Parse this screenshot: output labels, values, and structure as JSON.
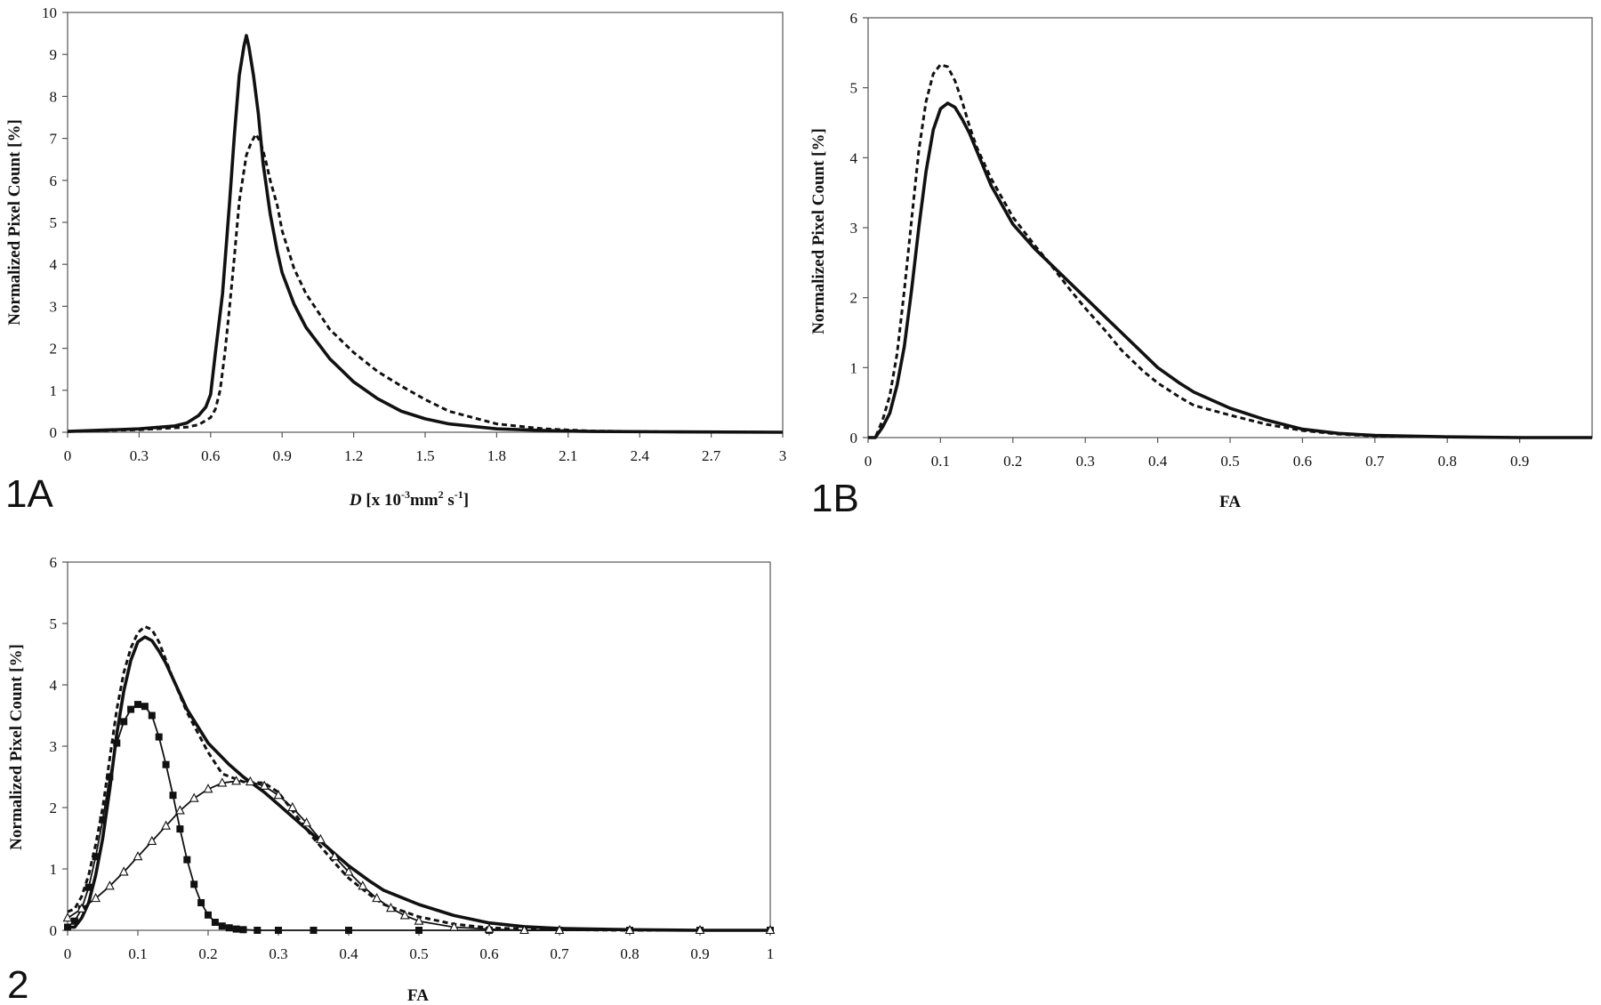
{
  "chart_data": [
    {
      "type": "line",
      "panel_label": "1A",
      "xlabel_parts": [
        "D",
        " [x 10",
        "-3",
        "mm",
        "2",
        " s",
        "-1",
        "]"
      ],
      "ylabel": "Normalized Pixel Count [%]",
      "xlim": [
        0,
        3
      ],
      "ylim": [
        0,
        10
      ],
      "xticks": [
        "0",
        "0.3",
        "0.6",
        "0.9",
        "1.2",
        "1.5",
        "1.8",
        "2.1",
        "2.4",
        "2.7",
        "3"
      ],
      "yticks": [
        "0",
        "1",
        "2",
        "3",
        "4",
        "5",
        "6",
        "7",
        "8",
        "9",
        "10"
      ],
      "series": [
        {
          "style": "solid",
          "color": "#111111",
          "x": [
            0,
            0.3,
            0.45,
            0.5,
            0.55,
            0.58,
            0.6,
            0.62,
            0.65,
            0.68,
            0.7,
            0.72,
            0.74,
            0.75,
            0.76,
            0.78,
            0.8,
            0.82,
            0.85,
            0.88,
            0.9,
            0.95,
            1.0,
            1.1,
            1.2,
            1.3,
            1.4,
            1.5,
            1.6,
            1.8,
            2.0,
            2.2,
            2.5,
            3.0
          ],
          "y": [
            0.02,
            0.08,
            0.15,
            0.22,
            0.4,
            0.6,
            0.9,
            1.9,
            3.3,
            5.5,
            7.1,
            8.5,
            9.2,
            9.45,
            9.2,
            8.5,
            7.6,
            6.4,
            5.2,
            4.3,
            3.8,
            3.05,
            2.5,
            1.75,
            1.2,
            0.8,
            0.5,
            0.32,
            0.2,
            0.08,
            0.04,
            0.02,
            0.01,
            0.0
          ]
        },
        {
          "style": "dashed",
          "color": "#111111",
          "x": [
            0,
            0.3,
            0.5,
            0.55,
            0.6,
            0.62,
            0.64,
            0.66,
            0.68,
            0.7,
            0.72,
            0.75,
            0.77,
            0.79,
            0.81,
            0.83,
            0.85,
            0.88,
            0.9,
            0.95,
            1.0,
            1.1,
            1.2,
            1.3,
            1.4,
            1.5,
            1.6,
            1.8,
            2.0,
            2.2,
            2.5,
            3.0
          ],
          "y": [
            0.02,
            0.06,
            0.12,
            0.18,
            0.35,
            0.55,
            1.0,
            1.9,
            3.0,
            4.2,
            5.5,
            6.6,
            6.9,
            7.1,
            6.9,
            6.5,
            6.0,
            5.4,
            4.8,
            3.9,
            3.3,
            2.45,
            1.9,
            1.45,
            1.1,
            0.78,
            0.5,
            0.2,
            0.08,
            0.03,
            0.01,
            0.0
          ]
        }
      ]
    },
    {
      "type": "line",
      "panel_label": "1B",
      "xlabel_parts": [
        "FA"
      ],
      "ylabel": "Normalized Pixel Count [%]",
      "xlim": [
        0,
        1
      ],
      "ylim": [
        0,
        6
      ],
      "xticks": [
        "0",
        "0.1",
        "0.2",
        "0.3",
        "0.4",
        "0.5",
        "0.6",
        "0.7",
        "0.8",
        "0.9"
      ],
      "yticks": [
        "0",
        "1",
        "2",
        "3",
        "4",
        "5",
        "6"
      ],
      "series": [
        {
          "style": "solid",
          "color": "#111111",
          "x": [
            0,
            0.01,
            0.02,
            0.03,
            0.04,
            0.05,
            0.06,
            0.07,
            0.08,
            0.09,
            0.1,
            0.11,
            0.12,
            0.13,
            0.14,
            0.15,
            0.17,
            0.2,
            0.23,
            0.25,
            0.28,
            0.3,
            0.33,
            0.35,
            0.38,
            0.4,
            0.43,
            0.45,
            0.5,
            0.55,
            0.6,
            0.65,
            0.7,
            0.8,
            0.9,
            1.0
          ],
          "y": [
            0,
            0,
            0.15,
            0.35,
            0.75,
            1.3,
            2.1,
            3.0,
            3.8,
            4.4,
            4.7,
            4.78,
            4.72,
            4.55,
            4.35,
            4.1,
            3.6,
            3.05,
            2.7,
            2.5,
            2.2,
            2.0,
            1.7,
            1.5,
            1.2,
            1.0,
            0.78,
            0.65,
            0.42,
            0.25,
            0.12,
            0.06,
            0.03,
            0.01,
            0.0,
            0.0
          ]
        },
        {
          "style": "dashed",
          "color": "#111111",
          "x": [
            0,
            0.01,
            0.02,
            0.03,
            0.04,
            0.05,
            0.06,
            0.07,
            0.08,
            0.09,
            0.1,
            0.11,
            0.12,
            0.13,
            0.14,
            0.15,
            0.17,
            0.2,
            0.23,
            0.25,
            0.28,
            0.3,
            0.33,
            0.35,
            0.38,
            0.4,
            0.43,
            0.45,
            0.5,
            0.55,
            0.6,
            0.65,
            0.7,
            0.8,
            0.9,
            1.0
          ],
          "y": [
            0,
            0,
            0.25,
            0.6,
            1.2,
            2.1,
            3.1,
            4.1,
            4.8,
            5.2,
            5.33,
            5.3,
            5.1,
            4.8,
            4.45,
            4.15,
            3.7,
            3.15,
            2.75,
            2.5,
            2.1,
            1.85,
            1.5,
            1.25,
            0.95,
            0.78,
            0.58,
            0.46,
            0.32,
            0.19,
            0.1,
            0.05,
            0.02,
            0.01,
            0.0,
            0.0
          ]
        }
      ]
    },
    {
      "type": "line",
      "panel_label": "2",
      "xlabel_parts": [
        "FA"
      ],
      "ylabel": "Normalized Pixel Count [%]",
      "xlim": [
        0,
        1
      ],
      "ylim": [
        0,
        6
      ],
      "xticks": [
        "0",
        "0.1",
        "0.2",
        "0.3",
        "0.4",
        "0.5",
        "0.6",
        "0.7",
        "0.8",
        "0.9",
        "1"
      ],
      "yticks": [
        "0",
        "1",
        "2",
        "3",
        "4",
        "5",
        "6"
      ],
      "series": [
        {
          "style": "solid",
          "color": "#111111",
          "x": [
            0,
            0.01,
            0.02,
            0.03,
            0.04,
            0.05,
            0.06,
            0.07,
            0.08,
            0.09,
            0.1,
            0.11,
            0.12,
            0.13,
            0.14,
            0.15,
            0.17,
            0.2,
            0.23,
            0.25,
            0.28,
            0.3,
            0.33,
            0.35,
            0.38,
            0.4,
            0.43,
            0.45,
            0.5,
            0.55,
            0.6,
            0.65,
            0.7,
            0.8,
            0.9,
            1.0
          ],
          "y": [
            0.05,
            0.05,
            0.2,
            0.45,
            0.9,
            1.5,
            2.3,
            3.2,
            3.9,
            4.4,
            4.7,
            4.78,
            4.72,
            4.55,
            4.35,
            4.1,
            3.6,
            3.05,
            2.7,
            2.5,
            2.25,
            2.05,
            1.75,
            1.55,
            1.25,
            1.05,
            0.8,
            0.65,
            0.42,
            0.24,
            0.12,
            0.06,
            0.03,
            0.01,
            0.0,
            0.0
          ]
        },
        {
          "style": "dashed",
          "color": "#111111",
          "x": [
            0,
            0.01,
            0.02,
            0.03,
            0.04,
            0.05,
            0.06,
            0.07,
            0.08,
            0.09,
            0.1,
            0.11,
            0.12,
            0.13,
            0.14,
            0.15,
            0.17,
            0.2,
            0.22,
            0.25,
            0.28,
            0.3,
            0.33,
            0.35,
            0.38,
            0.4,
            0.43,
            0.45,
            0.5,
            0.55,
            0.6,
            0.65,
            0.7,
            0.8,
            0.9,
            1.0
          ],
          "y": [
            0.3,
            0.35,
            0.55,
            0.9,
            1.4,
            2.0,
            2.8,
            3.6,
            4.2,
            4.6,
            4.85,
            4.95,
            4.9,
            4.7,
            4.4,
            4.1,
            3.55,
            2.9,
            2.55,
            2.42,
            2.4,
            2.25,
            1.8,
            1.5,
            1.1,
            0.85,
            0.58,
            0.42,
            0.22,
            0.1,
            0.04,
            0.02,
            0.01,
            0.0,
            0.0,
            0.0
          ]
        },
        {
          "style": "squares",
          "color": "#111111",
          "x": [
            0,
            0.01,
            0.02,
            0.03,
            0.04,
            0.05,
            0.06,
            0.07,
            0.08,
            0.09,
            0.1,
            0.11,
            0.12,
            0.13,
            0.14,
            0.15,
            0.16,
            0.17,
            0.18,
            0.19,
            0.2,
            0.21,
            0.22,
            0.23,
            0.24,
            0.25,
            0.27,
            0.3,
            0.35,
            0.4,
            0.5,
            0.6,
            0.7,
            0.8,
            0.9,
            1.0
          ],
          "y": [
            0.05,
            0.15,
            0.35,
            0.7,
            1.2,
            1.8,
            2.5,
            3.05,
            3.4,
            3.6,
            3.68,
            3.65,
            3.5,
            3.15,
            2.7,
            2.2,
            1.65,
            1.15,
            0.75,
            0.45,
            0.25,
            0.13,
            0.07,
            0.04,
            0.02,
            0.01,
            0.0,
            0.0,
            0.0,
            0.0,
            0.0,
            0.0,
            0.0,
            0.0,
            0.0,
            0.0
          ]
        },
        {
          "style": "triangles",
          "color": "#111111",
          "x": [
            0,
            0.02,
            0.04,
            0.06,
            0.08,
            0.1,
            0.12,
            0.14,
            0.16,
            0.18,
            0.2,
            0.22,
            0.24,
            0.26,
            0.28,
            0.3,
            0.32,
            0.34,
            0.36,
            0.38,
            0.4,
            0.42,
            0.44,
            0.46,
            0.48,
            0.5,
            0.55,
            0.6,
            0.65,
            0.7,
            0.8,
            0.9,
            1.0
          ],
          "y": [
            0.2,
            0.35,
            0.52,
            0.72,
            0.95,
            1.2,
            1.45,
            1.7,
            1.95,
            2.15,
            2.3,
            2.4,
            2.43,
            2.42,
            2.35,
            2.2,
            2.0,
            1.75,
            1.48,
            1.2,
            0.95,
            0.72,
            0.52,
            0.36,
            0.24,
            0.15,
            0.05,
            0.02,
            0.0,
            0.0,
            0.0,
            0.0,
            0.0
          ]
        }
      ]
    }
  ]
}
